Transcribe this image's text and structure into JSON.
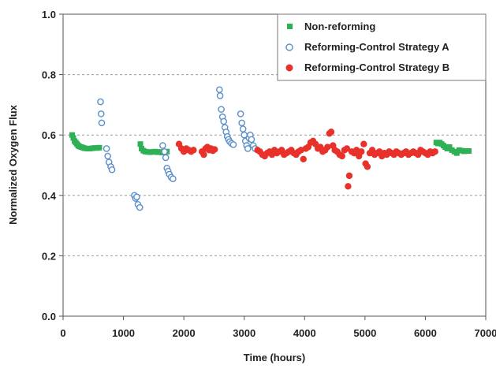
{
  "chart_data": {
    "type": "scatter",
    "title": "",
    "xlabel": "Time (hours)",
    "ylabel": "Normalized Oxygen Flux",
    "xlim": [
      0,
      7000
    ],
    "ylim": [
      0.0,
      1.0
    ],
    "x_ticks": [
      0,
      1000,
      2000,
      3000,
      4000,
      5000,
      6000,
      7000
    ],
    "y_ticks": [
      "0.0",
      "0.2",
      "0.4",
      "0.6",
      "0.8",
      "1.0"
    ],
    "grid": "horizontal dashed",
    "legend_position": "top-right",
    "series": [
      {
        "name": "Non-reforming",
        "marker": "square",
        "color": "#2eb055",
        "points": [
          [
            150,
            0.6
          ],
          [
            170,
            0.59
          ],
          [
            190,
            0.58
          ],
          [
            210,
            0.575
          ],
          [
            230,
            0.57
          ],
          [
            250,
            0.565
          ],
          [
            270,
            0.562
          ],
          [
            300,
            0.56
          ],
          [
            330,
            0.558
          ],
          [
            360,
            0.556
          ],
          [
            400,
            0.555
          ],
          [
            440,
            0.555
          ],
          [
            480,
            0.556
          ],
          [
            520,
            0.557
          ],
          [
            560,
            0.557
          ],
          [
            600,
            0.558
          ],
          [
            1280,
            0.57
          ],
          [
            1300,
            0.555
          ],
          [
            1330,
            0.548
          ],
          [
            1360,
            0.545
          ],
          [
            1400,
            0.544
          ],
          [
            1440,
            0.543
          ],
          [
            1480,
            0.544
          ],
          [
            1520,
            0.545
          ],
          [
            1560,
            0.543
          ],
          [
            1600,
            0.544
          ],
          [
            1640,
            0.542
          ],
          [
            1680,
            0.543
          ],
          [
            1720,
            0.545
          ],
          [
            6180,
            0.575
          ],
          [
            6210,
            0.572
          ],
          [
            6240,
            0.575
          ],
          [
            6270,
            0.57
          ],
          [
            6300,
            0.565
          ],
          [
            6330,
            0.56
          ],
          [
            6360,
            0.555
          ],
          [
            6400,
            0.56
          ],
          [
            6440,
            0.55
          ],
          [
            6480,
            0.545
          ],
          [
            6520,
            0.54
          ],
          [
            6560,
            0.55
          ],
          [
            6600,
            0.548
          ],
          [
            6640,
            0.546
          ],
          [
            6680,
            0.547
          ],
          [
            6720,
            0.547
          ]
        ]
      },
      {
        "name": "Reforming-Control Strategy A",
        "marker": "circle-open",
        "color": "#5b8fc9",
        "points": [
          [
            620,
            0.71
          ],
          [
            630,
            0.67
          ],
          [
            640,
            0.64
          ],
          [
            720,
            0.555
          ],
          [
            740,
            0.53
          ],
          [
            760,
            0.51
          ],
          [
            790,
            0.495
          ],
          [
            810,
            0.485
          ],
          [
            1180,
            0.4
          ],
          [
            1200,
            0.39
          ],
          [
            1220,
            0.395
          ],
          [
            1240,
            0.37
          ],
          [
            1270,
            0.36
          ],
          [
            1650,
            0.565
          ],
          [
            1680,
            0.545
          ],
          [
            1700,
            0.525
          ],
          [
            1720,
            0.49
          ],
          [
            1740,
            0.48
          ],
          [
            1760,
            0.47
          ],
          [
            1790,
            0.46
          ],
          [
            1820,
            0.455
          ],
          [
            2590,
            0.75
          ],
          [
            2600,
            0.73
          ],
          [
            2620,
            0.685
          ],
          [
            2640,
            0.66
          ],
          [
            2660,
            0.645
          ],
          [
            2680,
            0.625
          ],
          [
            2700,
            0.61
          ],
          [
            2720,
            0.595
          ],
          [
            2740,
            0.585
          ],
          [
            2760,
            0.578
          ],
          [
            2790,
            0.572
          ],
          [
            2820,
            0.568
          ],
          [
            2940,
            0.67
          ],
          [
            2960,
            0.64
          ],
          [
            2980,
            0.62
          ],
          [
            3000,
            0.6
          ],
          [
            3020,
            0.58
          ],
          [
            3040,
            0.565
          ],
          [
            3060,
            0.555
          ],
          [
            3080,
            0.59
          ],
          [
            3100,
            0.6
          ],
          [
            3120,
            0.585
          ],
          [
            3150,
            0.565
          ],
          [
            3180,
            0.555
          ]
        ]
      },
      {
        "name": "Reforming-Control Strategy B",
        "marker": "circle-filled",
        "color": "#e8312b",
        "points": [
          [
            1920,
            0.57
          ],
          [
            1960,
            0.555
          ],
          [
            2000,
            0.545
          ],
          [
            2040,
            0.555
          ],
          [
            2080,
            0.55
          ],
          [
            2120,
            0.545
          ],
          [
            2160,
            0.55
          ],
          [
            2300,
            0.545
          ],
          [
            2330,
            0.535
          ],
          [
            2360,
            0.555
          ],
          [
            2390,
            0.56
          ],
          [
            2420,
            0.55
          ],
          [
            2450,
            0.555
          ],
          [
            2480,
            0.548
          ],
          [
            2510,
            0.552
          ],
          [
            3220,
            0.55
          ],
          [
            3260,
            0.545
          ],
          [
            3300,
            0.535
          ],
          [
            3340,
            0.53
          ],
          [
            3380,
            0.54
          ],
          [
            3420,
            0.545
          ],
          [
            3460,
            0.535
          ],
          [
            3500,
            0.55
          ],
          [
            3540,
            0.54
          ],
          [
            3580,
            0.545
          ],
          [
            3620,
            0.55
          ],
          [
            3660,
            0.535
          ],
          [
            3700,
            0.54
          ],
          [
            3740,
            0.545
          ],
          [
            3780,
            0.55
          ],
          [
            3820,
            0.54
          ],
          [
            3860,
            0.535
          ],
          [
            3900,
            0.545
          ],
          [
            3940,
            0.55
          ],
          [
            3980,
            0.52
          ],
          [
            4020,
            0.555
          ],
          [
            4060,
            0.56
          ],
          [
            4100,
            0.575
          ],
          [
            4140,
            0.58
          ],
          [
            4180,
            0.57
          ],
          [
            4220,
            0.555
          ],
          [
            4260,
            0.56
          ],
          [
            4300,
            0.545
          ],
          [
            4340,
            0.55
          ],
          [
            4380,
            0.56
          ],
          [
            4410,
            0.605
          ],
          [
            4440,
            0.61
          ],
          [
            4470,
            0.565
          ],
          [
            4500,
            0.55
          ],
          [
            4540,
            0.545
          ],
          [
            4580,
            0.535
          ],
          [
            4620,
            0.53
          ],
          [
            4660,
            0.55
          ],
          [
            4700,
            0.555
          ],
          [
            4720,
            0.43
          ],
          [
            4740,
            0.465
          ],
          [
            4780,
            0.545
          ],
          [
            4820,
            0.54
          ],
          [
            4860,
            0.55
          ],
          [
            4900,
            0.53
          ],
          [
            4940,
            0.545
          ],
          [
            4980,
            0.57
          ],
          [
            5010,
            0.505
          ],
          [
            5040,
            0.495
          ],
          [
            5080,
            0.54
          ],
          [
            5120,
            0.55
          ],
          [
            5160,
            0.535
          ],
          [
            5200,
            0.54
          ],
          [
            5240,
            0.545
          ],
          [
            5280,
            0.53
          ],
          [
            5320,
            0.54
          ],
          [
            5360,
            0.535
          ],
          [
            5400,
            0.545
          ],
          [
            5440,
            0.54
          ],
          [
            5480,
            0.535
          ],
          [
            5520,
            0.545
          ],
          [
            5560,
            0.54
          ],
          [
            5600,
            0.535
          ],
          [
            5640,
            0.54
          ],
          [
            5680,
            0.545
          ],
          [
            5720,
            0.535
          ],
          [
            5760,
            0.54
          ],
          [
            5800,
            0.545
          ],
          [
            5840,
            0.54
          ],
          [
            5880,
            0.535
          ],
          [
            5920,
            0.55
          ],
          [
            5960,
            0.545
          ],
          [
            6000,
            0.54
          ],
          [
            6040,
            0.535
          ],
          [
            6080,
            0.545
          ],
          [
            6120,
            0.54
          ],
          [
            6160,
            0.545
          ]
        ]
      }
    ]
  }
}
